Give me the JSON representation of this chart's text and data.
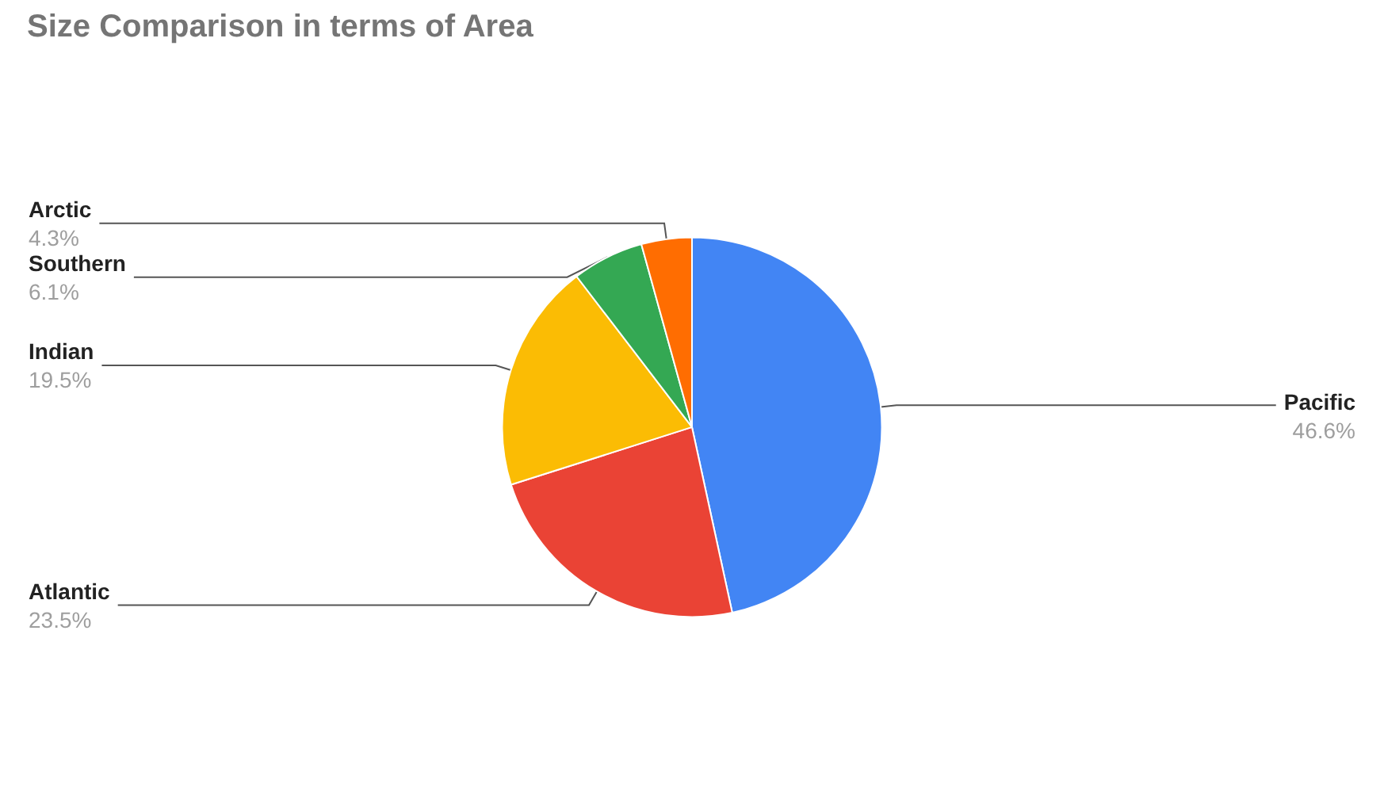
{
  "chart_data": {
    "type": "pie",
    "title": "Size Comparison in terms of Area",
    "categories": [
      "Pacific",
      "Atlantic",
      "Indian",
      "Southern",
      "Arctic"
    ],
    "values": [
      46.6,
      23.5,
      19.5,
      6.1,
      4.3
    ],
    "value_labels": [
      "46.6%",
      "23.5%",
      "19.5%",
      "6.1%",
      "4.3%"
    ],
    "colors": [
      "#4285f4",
      "#ea4335",
      "#fbbc04",
      "#34a853",
      "#ff6d01"
    ],
    "legend": false
  }
}
